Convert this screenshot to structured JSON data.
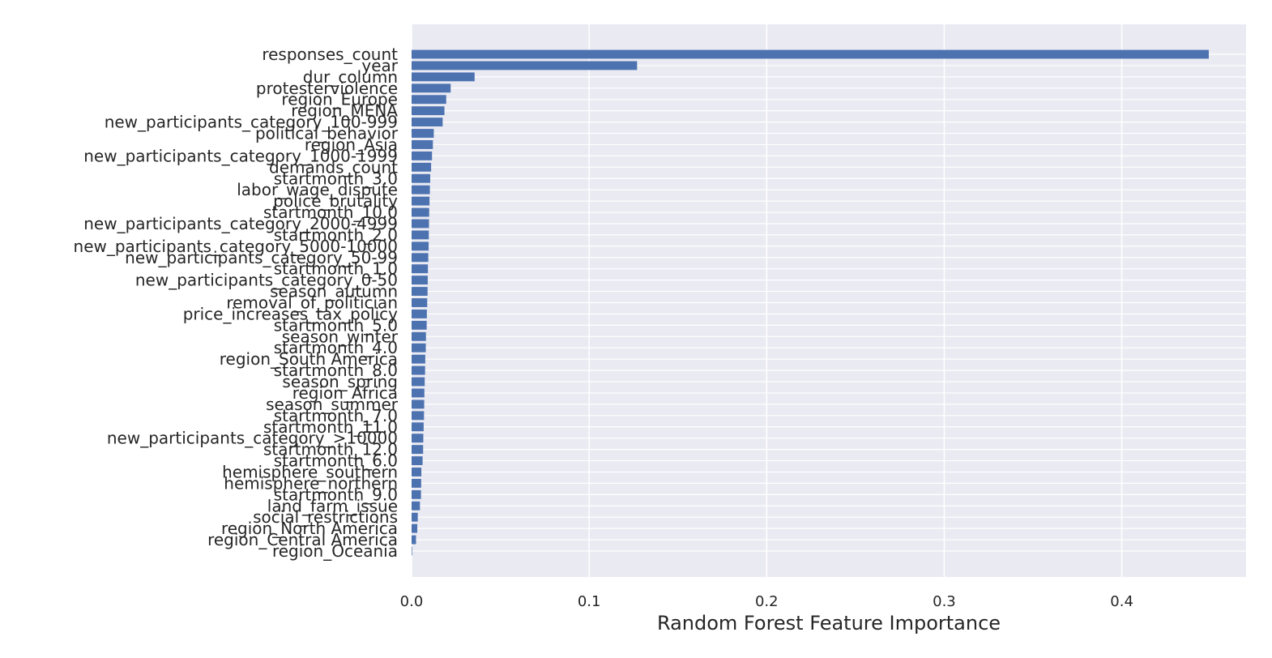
{
  "chart_data": {
    "type": "bar",
    "orientation": "horizontal",
    "title": "",
    "xlabel": "Random Forest Feature Importance",
    "ylabel": "",
    "xlim": [
      0,
      0.47
    ],
    "xticks": [
      "0.0",
      "0.1",
      "0.2",
      "0.3",
      "0.4"
    ],
    "grid": true,
    "colors": {
      "bar": "#4c72b0",
      "plot_bg": "#eaeaf2",
      "grid": "#ffffff",
      "text": "#262626"
    },
    "categories": [
      "responses_count",
      "year",
      "dur_column",
      "protesterviolence",
      "region_Europe",
      "region_MENA",
      "new_participants_category_100-999",
      "political_behavior",
      "region_Asia",
      "new_participants_category_1000-1999",
      "demands_count",
      "startmonth_3.0",
      "labor_wage_dispute",
      "police_brutality",
      "startmonth_10.0",
      "new_participants_category_2000-4999",
      "startmonth_2.0",
      "new_participants_category_5000-10000",
      "new_participants_category_50-99",
      "startmonth_1.0",
      "new_participants_category_0-50",
      "season_autumn",
      "removal_of_politician",
      "price_increases_tax_policy",
      "startmonth_5.0",
      "season_winter",
      "startmonth_4.0",
      "region_South America",
      "startmonth_8.0",
      "season_spring",
      "region_Africa",
      "season_summer",
      "startmonth_7.0",
      "startmonth_11.0",
      "new_participants_category_>10000",
      "startmonth_12.0",
      "startmonth_6.0",
      "hemisphere_southern",
      "hemisphere_northern",
      "startmonth_9.0",
      "land_farm_issue",
      "social_restrictions",
      "region_North America",
      "region_Central America",
      "region_Oceania"
    ],
    "values": [
      0.449,
      0.127,
      0.0355,
      0.022,
      0.0195,
      0.0185,
      0.0175,
      0.0125,
      0.012,
      0.0115,
      0.011,
      0.0105,
      0.0103,
      0.0101,
      0.0099,
      0.0098,
      0.0097,
      0.0096,
      0.0094,
      0.0092,
      0.0091,
      0.009,
      0.0088,
      0.0086,
      0.0085,
      0.0081,
      0.008,
      0.0077,
      0.0076,
      0.0074,
      0.0072,
      0.0071,
      0.007,
      0.0068,
      0.0066,
      0.0065,
      0.0062,
      0.0055,
      0.0054,
      0.0053,
      0.0047,
      0.0035,
      0.0032,
      0.0025,
      0.0003
    ]
  }
}
